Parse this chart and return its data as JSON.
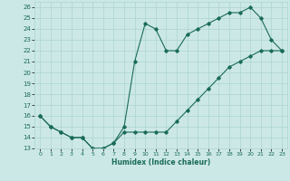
{
  "xlabel": "Humidex (Indice chaleur)",
  "line_color": "#1a6b5a",
  "bg_color": "#cce8e6",
  "grid_color": "#aad4d0",
  "line1_x": [
    0,
    1,
    2,
    3,
    4,
    5,
    6,
    7,
    8,
    9,
    10,
    11,
    12,
    13,
    14,
    15,
    16,
    17,
    18,
    19,
    20,
    21,
    22,
    23
  ],
  "line1_y": [
    16,
    15,
    14.5,
    14,
    14,
    13,
    13,
    13.5,
    15,
    21,
    24.5,
    24,
    22,
    22,
    23.5,
    24,
    24.5,
    25,
    25.5,
    25.5,
    26,
    25,
    23,
    22
  ],
  "line2_x": [
    0,
    1,
    2,
    3,
    4,
    5,
    6,
    7,
    8,
    9,
    10,
    11,
    12,
    13,
    14,
    15,
    16,
    17,
    18,
    19,
    20,
    21,
    22,
    23
  ],
  "line2_y": [
    16,
    15,
    14.5,
    14,
    14,
    13,
    13,
    13.5,
    14.5,
    14.5,
    14.5,
    14.5,
    14.5,
    15.5,
    16.5,
    17.5,
    18.5,
    19.5,
    20.5,
    21,
    21.5,
    22,
    22,
    22
  ],
  "xlim": [
    -0.5,
    23.5
  ],
  "ylim": [
    13,
    26.5
  ],
  "yticks": [
    13,
    14,
    15,
    16,
    17,
    18,
    19,
    20,
    21,
    22,
    23,
    24,
    25,
    26
  ],
  "xticks": [
    0,
    1,
    2,
    3,
    4,
    5,
    6,
    7,
    8,
    9,
    10,
    11,
    12,
    13,
    14,
    15,
    16,
    17,
    18,
    19,
    20,
    21,
    22,
    23
  ]
}
